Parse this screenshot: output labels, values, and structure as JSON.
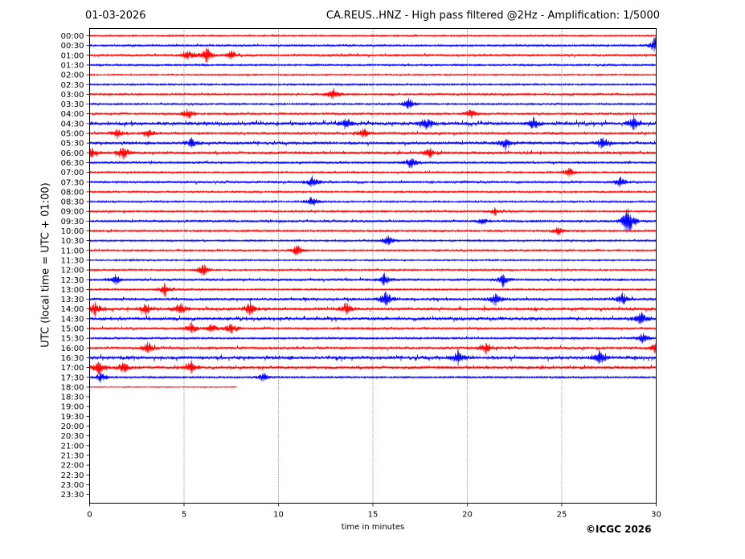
{
  "header": {
    "date": "01-03-2026",
    "title": "CA.REUS..HNZ - High pass filtered @2Hz - Amplification: 1/5000"
  },
  "chart_data": {
    "type": "line",
    "title": "CA.REUS..HNZ - High pass filtered @2Hz - Amplification: 1/5000",
    "xlabel": "time in minutes",
    "ylabel": "UTC (local time = UTC + 01:00)",
    "xlim": [
      0,
      30
    ],
    "x_ticks": [
      "0",
      "5",
      "10",
      "15",
      "20",
      "25",
      "30"
    ],
    "grid": "vertical dotted lines at every 5 minutes",
    "row_colors": [
      "#ff0000",
      "#0000ff"
    ],
    "rows": [
      {
        "label": "00:00",
        "end_min": 30,
        "intensity": 0.3,
        "events": []
      },
      {
        "label": "00:30",
        "end_min": 30,
        "intensity": 0.5,
        "events": [
          {
            "t": 30,
            "a": 1.6
          }
        ]
      },
      {
        "label": "01:00",
        "end_min": 30,
        "intensity": 0.6,
        "events": [
          {
            "t": 5.2,
            "a": 0.8
          },
          {
            "t": 6.2,
            "a": 1.2
          },
          {
            "t": 7.5,
            "a": 0.6
          }
        ]
      },
      {
        "label": "01:30",
        "end_min": 30,
        "intensity": 0.4,
        "events": []
      },
      {
        "label": "02:00",
        "end_min": 30,
        "intensity": 0.3,
        "events": []
      },
      {
        "label": "02:30",
        "end_min": 30,
        "intensity": 0.4,
        "events": []
      },
      {
        "label": "03:00",
        "end_min": 30,
        "intensity": 0.5,
        "events": [
          {
            "t": 12.9,
            "a": 1.0
          }
        ]
      },
      {
        "label": "03:30",
        "end_min": 30,
        "intensity": 0.4,
        "events": [
          {
            "t": 16.9,
            "a": 1.0
          }
        ]
      },
      {
        "label": "04:00",
        "end_min": 30,
        "intensity": 0.5,
        "events": [
          {
            "t": 5.2,
            "a": 0.9
          },
          {
            "t": 20.2,
            "a": 0.7
          }
        ]
      },
      {
        "label": "04:30",
        "end_min": 30,
        "intensity": 1.0,
        "events": [
          {
            "t": 13.6,
            "a": 0.8
          },
          {
            "t": 17.8,
            "a": 0.9
          },
          {
            "t": 23.5,
            "a": 0.9
          },
          {
            "t": 28.8,
            "a": 0.9
          }
        ]
      },
      {
        "label": "05:00",
        "end_min": 30,
        "intensity": 0.6,
        "events": [
          {
            "t": 1.5,
            "a": 0.8
          },
          {
            "t": 3.1,
            "a": 0.6
          },
          {
            "t": 14.5,
            "a": 0.7
          }
        ]
      },
      {
        "label": "05:30",
        "end_min": 30,
        "intensity": 0.8,
        "events": [
          {
            "t": 5.4,
            "a": 0.7
          },
          {
            "t": 22,
            "a": 0.9
          },
          {
            "t": 27.2,
            "a": 0.9
          }
        ]
      },
      {
        "label": "06:00",
        "end_min": 30,
        "intensity": 0.8,
        "events": [
          {
            "t": 0.1,
            "a": 0.7
          },
          {
            "t": 1.8,
            "a": 1.0
          },
          {
            "t": 18,
            "a": 0.7
          }
        ]
      },
      {
        "label": "06:30",
        "end_min": 30,
        "intensity": 0.6,
        "events": [
          {
            "t": 17,
            "a": 0.9
          }
        ]
      },
      {
        "label": "07:00",
        "end_min": 30,
        "intensity": 0.4,
        "events": [
          {
            "t": 25.4,
            "a": 0.7
          }
        ]
      },
      {
        "label": "07:30",
        "end_min": 30,
        "intensity": 0.6,
        "events": [
          {
            "t": 11.8,
            "a": 0.9
          },
          {
            "t": 28.1,
            "a": 0.8
          }
        ]
      },
      {
        "label": "08:00",
        "end_min": 30,
        "intensity": 0.4,
        "events": []
      },
      {
        "label": "08:30",
        "end_min": 30,
        "intensity": 0.4,
        "events": [
          {
            "t": 11.8,
            "a": 0.8
          }
        ]
      },
      {
        "label": "09:00",
        "end_min": 30,
        "intensity": 0.5,
        "events": [
          {
            "t": 21.5,
            "a": 0.5
          }
        ]
      },
      {
        "label": "09:30",
        "end_min": 30,
        "intensity": 0.6,
        "events": [
          {
            "t": 20.8,
            "a": 0.6
          },
          {
            "t": 28.5,
            "a": 2.4
          }
        ]
      },
      {
        "label": "10:00",
        "end_min": 30,
        "intensity": 0.5,
        "events": [
          {
            "t": 24.8,
            "a": 0.6
          }
        ]
      },
      {
        "label": "10:30",
        "end_min": 30,
        "intensity": 0.4,
        "events": [
          {
            "t": 15.8,
            "a": 0.8
          }
        ]
      },
      {
        "label": "11:00",
        "end_min": 30,
        "intensity": 0.4,
        "events": [
          {
            "t": 11,
            "a": 0.9
          }
        ]
      },
      {
        "label": "11:30",
        "end_min": 30,
        "intensity": 0.3,
        "events": []
      },
      {
        "label": "12:00",
        "end_min": 30,
        "intensity": 0.4,
        "events": [
          {
            "t": 6,
            "a": 1.0
          }
        ]
      },
      {
        "label": "12:30",
        "end_min": 30,
        "intensity": 0.6,
        "events": [
          {
            "t": 1.4,
            "a": 0.8
          },
          {
            "t": 15.6,
            "a": 1.0
          },
          {
            "t": 21.9,
            "a": 1.0
          }
        ]
      },
      {
        "label": "13:00",
        "end_min": 30,
        "intensity": 0.4,
        "events": [
          {
            "t": 4,
            "a": 1.0
          }
        ]
      },
      {
        "label": "13:30",
        "end_min": 30,
        "intensity": 0.8,
        "events": [
          {
            "t": 15.7,
            "a": 1.2
          },
          {
            "t": 21.5,
            "a": 0.9
          },
          {
            "t": 28.2,
            "a": 0.9
          }
        ]
      },
      {
        "label": "14:00",
        "end_min": 30,
        "intensity": 0.9,
        "events": [
          {
            "t": 0.3,
            "a": 0.9
          },
          {
            "t": 3,
            "a": 0.9
          },
          {
            "t": 4.8,
            "a": 1.0
          },
          {
            "t": 8.5,
            "a": 0.9
          },
          {
            "t": 13.6,
            "a": 0.9
          }
        ]
      },
      {
        "label": "14:30",
        "end_min": 30,
        "intensity": 0.9,
        "events": [
          {
            "t": 29.2,
            "a": 1.0
          }
        ]
      },
      {
        "label": "15:00",
        "end_min": 30,
        "intensity": 0.6,
        "events": [
          {
            "t": 5.4,
            "a": 0.8
          },
          {
            "t": 6.5,
            "a": 0.7
          },
          {
            "t": 7.5,
            "a": 0.8
          }
        ]
      },
      {
        "label": "15:30",
        "end_min": 30,
        "intensity": 0.5,
        "events": [
          {
            "t": 29.3,
            "a": 0.8
          }
        ]
      },
      {
        "label": "16:00",
        "end_min": 30,
        "intensity": 0.7,
        "events": [
          {
            "t": 3.1,
            "a": 0.8
          },
          {
            "t": 21,
            "a": 0.8
          },
          {
            "t": 30,
            "a": 0.9
          }
        ]
      },
      {
        "label": "16:30",
        "end_min": 30,
        "intensity": 1.0,
        "events": [
          {
            "t": 19.5,
            "a": 1.0
          },
          {
            "t": 27,
            "a": 1.0
          }
        ]
      },
      {
        "label": "17:00",
        "end_min": 30,
        "intensity": 0.8,
        "events": [
          {
            "t": 0.5,
            "a": 1.0
          },
          {
            "t": 1.8,
            "a": 0.9
          },
          {
            "t": 5.4,
            "a": 0.9
          }
        ]
      },
      {
        "label": "17:30",
        "end_min": 30,
        "intensity": 0.5,
        "events": [
          {
            "t": 0.6,
            "a": 0.7
          },
          {
            "t": 9.2,
            "a": 0.6
          }
        ]
      },
      {
        "label": "18:00",
        "end_min": 7.8,
        "intensity": 0.05,
        "events": []
      },
      {
        "label": "18:30",
        "end_min": 0,
        "intensity": 0,
        "events": []
      },
      {
        "label": "19:00",
        "end_min": 0,
        "intensity": 0,
        "events": []
      },
      {
        "label": "19:30",
        "end_min": 0,
        "intensity": 0,
        "events": []
      },
      {
        "label": "20:00",
        "end_min": 0,
        "intensity": 0,
        "events": []
      },
      {
        "label": "20:30",
        "end_min": 0,
        "intensity": 0,
        "events": []
      },
      {
        "label": "21:00",
        "end_min": 0,
        "intensity": 0,
        "events": []
      },
      {
        "label": "21:30",
        "end_min": 0,
        "intensity": 0,
        "events": []
      },
      {
        "label": "22:00",
        "end_min": 0,
        "intensity": 0,
        "events": []
      },
      {
        "label": "22:30",
        "end_min": 0,
        "intensity": 0,
        "events": []
      },
      {
        "label": "23:00",
        "end_min": 0,
        "intensity": 0,
        "events": []
      },
      {
        "label": "23:30",
        "end_min": 0,
        "intensity": 0,
        "events": []
      }
    ]
  },
  "footer": {
    "copyright": "©ICGC 2026"
  }
}
